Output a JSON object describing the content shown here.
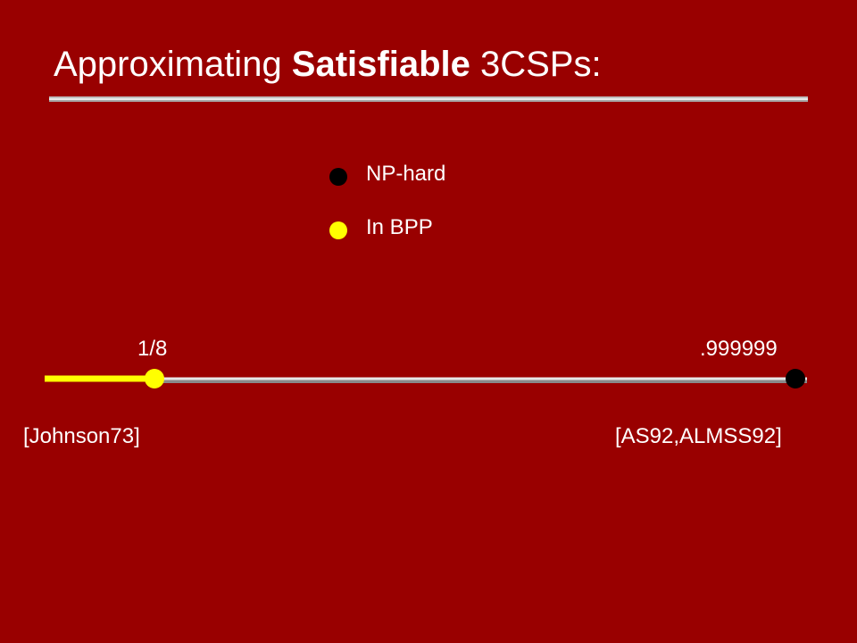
{
  "slide": {
    "title_prefix": "Approximating ",
    "title_bold": "Satisfiable",
    "title_suffix": " 3CSPs:"
  },
  "legend": {
    "items": [
      {
        "label": "NP-hard",
        "color": "#000000"
      },
      {
        "label": "In BPP",
        "color": "#ffff00"
      }
    ]
  },
  "number_line": {
    "points": [
      {
        "value_label": "1/8",
        "citation": "[Johnson73]",
        "color": "#ffff00"
      },
      {
        "value_label": ".999999",
        "citation": "[AS92,ALMSS92]",
        "color": "#000000"
      }
    ],
    "colors": {
      "bpp_segment": "#ffff00",
      "line": "#d9d9d9",
      "background": "#990000"
    }
  }
}
